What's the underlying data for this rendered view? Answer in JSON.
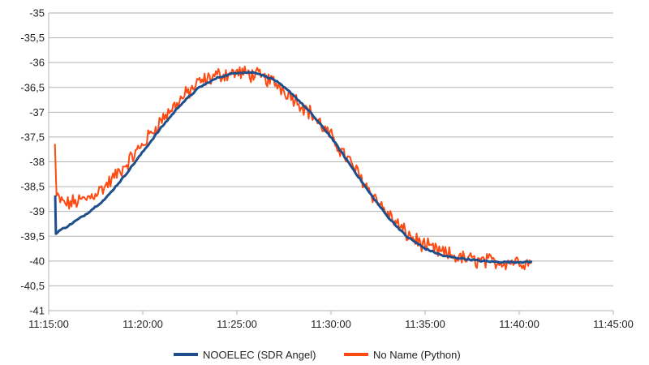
{
  "chart_data": {
    "type": "line",
    "title": "",
    "xlabel": "",
    "ylabel": "",
    "x_ticks": [
      "11:15:00",
      "11:20:00",
      "11:25:00",
      "11:30:00",
      "11:35:00",
      "11:40:00",
      "11:45:00"
    ],
    "y_ticks": [
      "-35",
      "-35,5",
      "-36",
      "-36,5",
      "-37",
      "-37,5",
      "-38",
      "-38,5",
      "-39",
      "-39,5",
      "-40",
      "-40,5",
      "-41"
    ],
    "xlim": [
      "11:15:00",
      "11:45:00"
    ],
    "ylim": [
      -41,
      -35
    ],
    "grid": "horizontal",
    "legend_position": "bottom",
    "series": [
      {
        "name": "NOOELEC (SDR Angel)",
        "color": "#1f4e8c",
        "x": [
          "11:15:21",
          "11:15:23",
          "11:15:30",
          "11:16:00",
          "11:17:00",
          "11:18:00",
          "11:19:00",
          "11:20:00",
          "11:21:00",
          "11:22:00",
          "11:23:00",
          "11:24:00",
          "11:25:00",
          "11:26:00",
          "11:27:00",
          "11:28:00",
          "11:29:00",
          "11:30:00",
          "11:31:00",
          "11:32:00",
          "11:33:00",
          "11:34:00",
          "11:35:00",
          "11:36:00",
          "11:37:00",
          "11:38:00",
          "11:39:00",
          "11:40:00",
          "11:40:40"
        ],
        "values": [
          -38.7,
          -39.45,
          -39.4,
          -39.3,
          -39.05,
          -38.75,
          -38.3,
          -37.8,
          -37.3,
          -36.85,
          -36.5,
          -36.3,
          -36.2,
          -36.2,
          -36.35,
          -36.65,
          -37.05,
          -37.5,
          -38.05,
          -38.6,
          -39.1,
          -39.5,
          -39.75,
          -39.9,
          -39.95,
          -40.0,
          -40.02,
          -40.02,
          -40.02
        ]
      },
      {
        "name": "No Name (Python)",
        "color": "#ff4a12",
        "x": [
          "11:15:20",
          "11:15:25",
          "11:15:40",
          "11:16:00",
          "11:17:00",
          "11:18:00",
          "11:19:00",
          "11:20:00",
          "11:21:00",
          "11:22:00",
          "11:23:00",
          "11:24:00",
          "11:25:00",
          "11:26:00",
          "11:27:00",
          "11:28:00",
          "11:29:00",
          "11:30:00",
          "11:31:00",
          "11:32:00",
          "11:33:00",
          "11:34:00",
          "11:35:00",
          "11:36:00",
          "11:37:00",
          "11:38:00",
          "11:39:00",
          "11:40:00",
          "11:40:40"
        ],
        "values": [
          -37.65,
          -38.7,
          -38.8,
          -38.85,
          -38.75,
          -38.5,
          -38.1,
          -37.65,
          -37.15,
          -36.75,
          -36.4,
          -36.25,
          -36.2,
          -36.25,
          -36.4,
          -36.7,
          -37.05,
          -37.5,
          -38.0,
          -38.55,
          -39.05,
          -39.45,
          -39.7,
          -39.85,
          -39.95,
          -40.0,
          -40.02,
          -40.0,
          -40.05
        ]
      }
    ]
  }
}
